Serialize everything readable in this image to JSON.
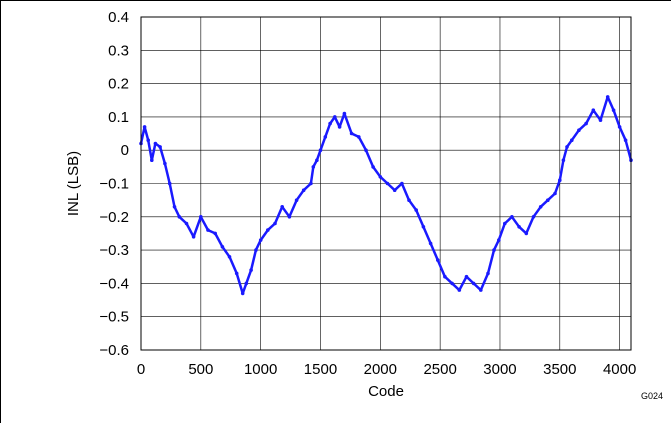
{
  "chart_data": {
    "type": "line",
    "title": "",
    "xlabel": "Code",
    "ylabel": "INL (LSB)",
    "xlim": [
      0,
      4095
    ],
    "ylim": [
      -0.6,
      0.4
    ],
    "x_ticks": [
      0,
      500,
      1000,
      1500,
      2000,
      2500,
      3000,
      3500,
      4000
    ],
    "x_tick_labels": [
      "0",
      "500",
      "1000",
      "1500",
      "2000",
      "2500",
      "3000",
      "3500",
      "4000"
    ],
    "y_ticks": [
      0.4,
      0.3,
      0.2,
      0.1,
      0,
      -0.1,
      -0.2,
      -0.3,
      -0.4,
      -0.5,
      -0.6
    ],
    "y_tick_labels": [
      "0.4",
      "0.3",
      "0.2",
      "0.1",
      "0",
      "−0.1",
      "−0.2",
      "−0.3",
      "−0.4",
      "−0.5",
      "−0.6"
    ],
    "grid": true,
    "legend": "none",
    "line_color": "#1a1aff",
    "series": [
      {
        "x": [
          0,
          30,
          60,
          90,
          120,
          160,
          200,
          240,
          280,
          320,
          380,
          440,
          500,
          560,
          620,
          680,
          740,
          800,
          850,
          880,
          920,
          960,
          1000,
          1060,
          1120,
          1180,
          1240,
          1300,
          1360,
          1420,
          1440,
          1470,
          1500,
          1540,
          1580,
          1620,
          1660,
          1700,
          1760,
          1820,
          1880,
          1940,
          2000,
          2060,
          2120,
          2180,
          2240,
          2300,
          2360,
          2420,
          2480,
          2540,
          2600,
          2660,
          2720,
          2780,
          2840,
          2900,
          2950,
          2990,
          3040,
          3100,
          3160,
          3220,
          3280,
          3340,
          3400,
          3460,
          3500,
          3530,
          3560,
          3600,
          3660,
          3720,
          3780,
          3840,
          3900,
          3950,
          4000,
          4050,
          4095
        ],
        "y": [
          0.02,
          0.07,
          0.03,
          -0.03,
          0.02,
          0.01,
          -0.04,
          -0.1,
          -0.17,
          -0.2,
          -0.22,
          -0.26,
          -0.2,
          -0.24,
          -0.25,
          -0.29,
          -0.32,
          -0.37,
          -0.43,
          -0.4,
          -0.36,
          -0.3,
          -0.27,
          -0.24,
          -0.22,
          -0.17,
          -0.2,
          -0.15,
          -0.12,
          -0.1,
          -0.05,
          -0.03,
          0.0,
          0.04,
          0.08,
          0.1,
          0.07,
          0.11,
          0.05,
          0.04,
          0.0,
          -0.05,
          -0.08,
          -0.1,
          -0.12,
          -0.1,
          -0.15,
          -0.18,
          -0.23,
          -0.28,
          -0.33,
          -0.38,
          -0.4,
          -0.42,
          -0.38,
          -0.4,
          -0.42,
          -0.37,
          -0.3,
          -0.27,
          -0.22,
          -0.2,
          -0.23,
          -0.25,
          -0.2,
          -0.17,
          -0.15,
          -0.13,
          -0.09,
          -0.03,
          0.01,
          0.03,
          0.06,
          0.08,
          0.12,
          0.09,
          0.16,
          0.12,
          0.07,
          0.03,
          -0.03
        ]
      }
    ]
  },
  "figure_id": "G024"
}
